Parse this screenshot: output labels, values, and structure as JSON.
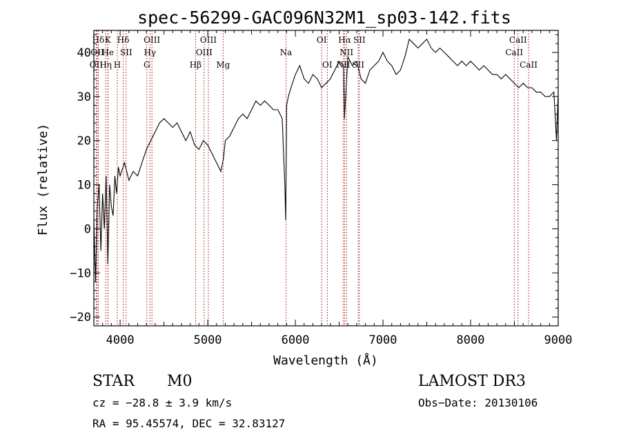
{
  "chart_data": {
    "type": "line",
    "title": "spec-56299-GAC096N32M1_sp03-142.fits",
    "xlabel": "Wavelength (Å)",
    "ylabel": "Flux (relative)",
    "xlim": [
      3700,
      9000
    ],
    "ylim": [
      -22,
      45
    ],
    "x_ticks": [
      4000,
      5000,
      6000,
      7000,
      8000,
      9000
    ],
    "y_ticks": [
      -20,
      -10,
      0,
      10,
      20,
      30,
      40
    ],
    "grid": false,
    "series": [
      {
        "x": [
          3700,
          3720,
          3740,
          3760,
          3780,
          3800,
          3820,
          3840,
          3860,
          3880,
          3900,
          3920,
          3940,
          3960,
          3980,
          4000,
          4050,
          4100,
          4150,
          4200,
          4250,
          4300,
          4350,
          4400,
          4450,
          4500,
          4550,
          4600,
          4650,
          4700,
          4750,
          4800,
          4850,
          4900,
          4950,
          5000,
          5050,
          5100,
          5150,
          5180,
          5200,
          5250,
          5300,
          5350,
          5400,
          5450,
          5500,
          5550,
          5600,
          5650,
          5700,
          5750,
          5800,
          5850,
          5880,
          5890,
          5900,
          5920,
          5950,
          6000,
          6050,
          6100,
          6150,
          6200,
          6250,
          6300,
          6350,
          6400,
          6450,
          6500,
          6550,
          6560,
          6600,
          6650,
          6700,
          6750,
          6800,
          6850,
          6900,
          6950,
          7000,
          7050,
          7100,
          7150,
          7200,
          7250,
          7300,
          7350,
          7400,
          7450,
          7500,
          7550,
          7600,
          7650,
          7700,
          7750,
          7800,
          7850,
          7900,
          7950,
          8000,
          8050,
          8100,
          8150,
          8200,
          8250,
          8300,
          8350,
          8400,
          8450,
          8500,
          8550,
          8600,
          8650,
          8700,
          8750,
          8800,
          8850,
          8900,
          8950,
          8980,
          9000
        ],
        "y": [
          2,
          -12,
          5,
          10,
          -5,
          8,
          0,
          12,
          -8,
          10,
          5,
          3,
          12,
          8,
          14,
          12,
          15,
          11,
          13,
          12,
          15,
          18,
          20,
          22,
          24,
          25,
          24,
          23,
          24,
          22,
          20,
          22,
          19,
          18,
          20,
          19,
          17,
          15,
          13,
          16,
          20,
          21,
          23,
          25,
          26,
          25,
          27,
          29,
          28,
          29,
          28,
          27,
          27,
          25,
          10,
          2,
          28,
          30,
          32,
          35,
          37,
          34,
          33,
          35,
          34,
          32,
          33,
          34,
          36,
          38,
          37,
          25,
          39,
          37,
          38,
          34,
          33,
          36,
          37,
          38,
          40,
          38,
          37,
          35,
          36,
          39,
          43,
          42,
          41,
          42,
          43,
          41,
          40,
          41,
          40,
          39,
          38,
          37,
          38,
          37,
          38,
          37,
          36,
          37,
          36,
          35,
          35,
          34,
          35,
          34,
          33,
          32,
          33,
          32,
          32,
          31,
          31,
          30,
          30,
          31,
          20,
          31
        ]
      }
    ],
    "lines": [
      {
        "name": "Hδ",
        "x": 3750,
        "row": 0
      },
      {
        "name": "K",
        "x": 3860,
        "row": 0
      },
      {
        "name": "Hδ",
        "x": 4035,
        "row": 0
      },
      {
        "name": "OIII",
        "x": 4363,
        "row": 0
      },
      {
        "name": "OIII",
        "x": 5007,
        "row": 0
      },
      {
        "name": "OI",
        "x": 6300,
        "row": 0
      },
      {
        "name": "Hα",
        "x": 6563,
        "row": 0
      },
      {
        "name": "SII",
        "x": 6731,
        "row": 0
      },
      {
        "name": "CaII",
        "x": 8542,
        "row": 0
      },
      {
        "name": "OII",
        "x": 3740,
        "row": 1
      },
      {
        "name": "He",
        "x": 3860,
        "row": 1
      },
      {
        "name": "SII",
        "x": 4069,
        "row": 1
      },
      {
        "name": "Hγ",
        "x": 4340,
        "row": 1
      },
      {
        "name": "OIII",
        "x": 4959,
        "row": 1
      },
      {
        "name": "Na",
        "x": 5893,
        "row": 1
      },
      {
        "name": "NII",
        "x": 6583,
        "row": 1
      },
      {
        "name": "CaII",
        "x": 8498,
        "row": 1
      },
      {
        "name": "OII",
        "x": 3727,
        "row": 2
      },
      {
        "name": "Hη",
        "x": 3835,
        "row": 2
      },
      {
        "name": "H",
        "x": 3968,
        "row": 2
      },
      {
        "name": "G",
        "x": 4305,
        "row": 2
      },
      {
        "name": "Hβ",
        "x": 4861,
        "row": 2
      },
      {
        "name": "Mg",
        "x": 5175,
        "row": 2
      },
      {
        "name": "OI",
        "x": 6364,
        "row": 2
      },
      {
        "name": "NII",
        "x": 6548,
        "row": 2
      },
      {
        "name": "SII",
        "x": 6717,
        "row": 2
      },
      {
        "name": "CaII",
        "x": 8662,
        "row": 2
      }
    ]
  },
  "info": {
    "class": "STAR",
    "subclass": "M0",
    "survey": "LAMOST DR3",
    "cz": "cz = −28.8 ± 3.9 km/s",
    "obs_date": "Obs−Date: 20130106",
    "radec": "RA =  95.45574, DEC =  32.83127"
  },
  "colors": {
    "spectrum": "#000000",
    "marker_line": "#aa1111"
  }
}
